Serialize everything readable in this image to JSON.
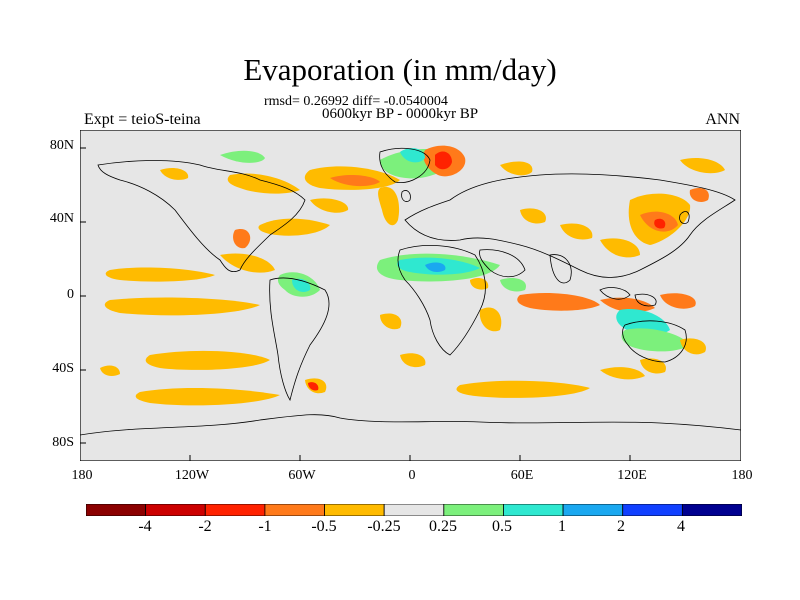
{
  "title": "Evaporation (in mm/day)",
  "stats": "rmsd= 0.26992 diff= -0.0540004",
  "period": "0600kyr BP - 0000kyr BP",
  "experiment": "Expt = teioS-teina",
  "season": "ANN",
  "lat_ticks": [
    "80N",
    "40N",
    "0",
    "40S",
    "80S"
  ],
  "lon_ticks": [
    "180",
    "120W",
    "60W",
    "0",
    "60E",
    "120E",
    "180"
  ],
  "colorbar": {
    "labels": [
      "-4",
      "-2",
      "-1",
      "-0.5",
      "-0.25",
      "0.25",
      "0.5",
      "1",
      "2",
      "4"
    ],
    "colors": [
      "#8b0000",
      "#cc0000",
      "#ff2200",
      "#ff7a1a",
      "#ffbb00",
      "#e6e6e6",
      "#7cf07c",
      "#2fe8d0",
      "#1aa8f0",
      "#1040ff",
      "#000090"
    ]
  },
  "colors": {
    "background_field": "#e6e6e6",
    "coastline": "#000000"
  }
}
